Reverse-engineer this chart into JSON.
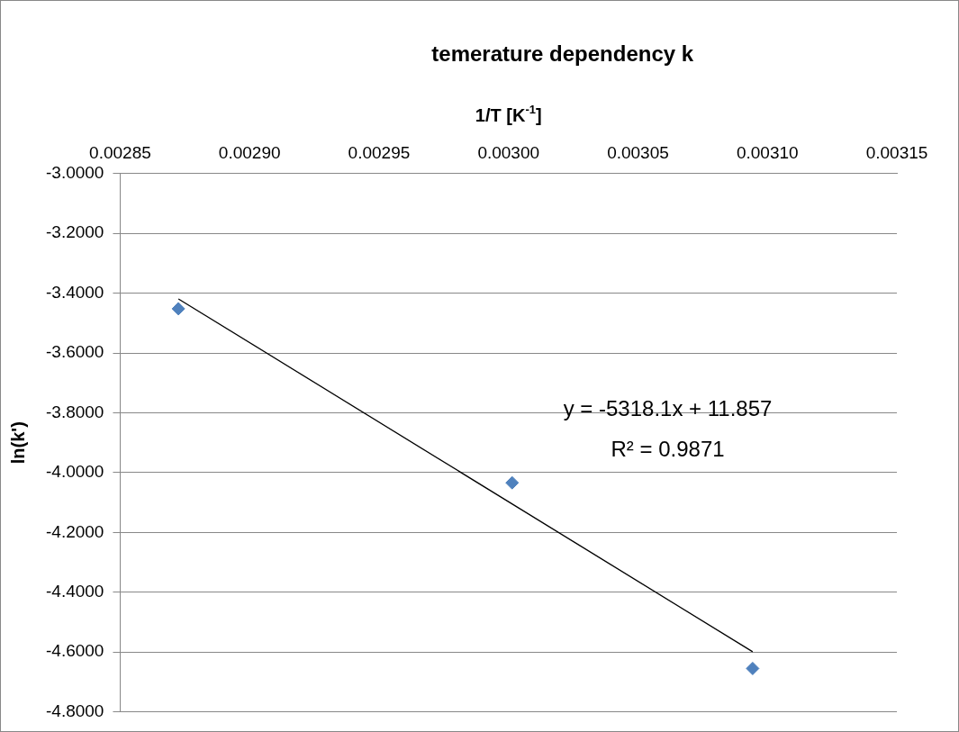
{
  "chart_data": {
    "type": "scatter",
    "title": "temerature dependency k",
    "xlabel": "1/T [K$^{-1}$]",
    "ylabel": "ln(k')",
    "series": [
      {
        "color": "#4f81bd",
        "marker": "diamond",
        "x": [
          0.0028725,
          0.0030014,
          0.0030943
        ],
        "values": [
          -3.452,
          -4.034,
          -4.655
        ]
      },
      {
        "type": "line",
        "color": "#000000",
        "marker": "none",
        "x": [
          0.0028725,
          0.0030943
        ],
        "values": [
          -3.419,
          -4.599
        ]
      }
    ],
    "annotations": [
      "y = -5318.1x + 11.857",
      "R² = 0.9871"
    ],
    "xlim": [
      0.00285,
      0.00315
    ],
    "xticks": [
      0.00285,
      {
        "value": 0.0029,
        "label": "0.00290"
      },
      0.00295,
      {
        "value": 0.003,
        "label": "0.00300"
      },
      0.00305,
      {
        "value": 0.0031,
        "label": "0.00310"
      },
      0.00315
    ],
    "ylim": [
      -4.8,
      -3.0
    ],
    "yticks": [
      {
        "value": -4.8,
        "label": "-4.8000"
      },
      {
        "value": -4.6,
        "label": "-4.6000"
      },
      {
        "value": -4.4,
        "label": "-4.4000"
      },
      {
        "value": -4.2,
        "label": "-4.2000"
      },
      {
        "value": -4.0,
        "label": "-4.0000"
      },
      {
        "value": -3.8,
        "label": "-3.8000"
      },
      {
        "value": -3.6,
        "label": "-3.6000"
      },
      {
        "value": -3.4,
        "label": "-3.4000"
      },
      {
        "value": -3.2,
        "label": "-3.2000"
      },
      {
        "value": -3.0,
        "label": "-3.0000"
      }
    ],
    "grid": "y",
    "legend": false
  }
}
